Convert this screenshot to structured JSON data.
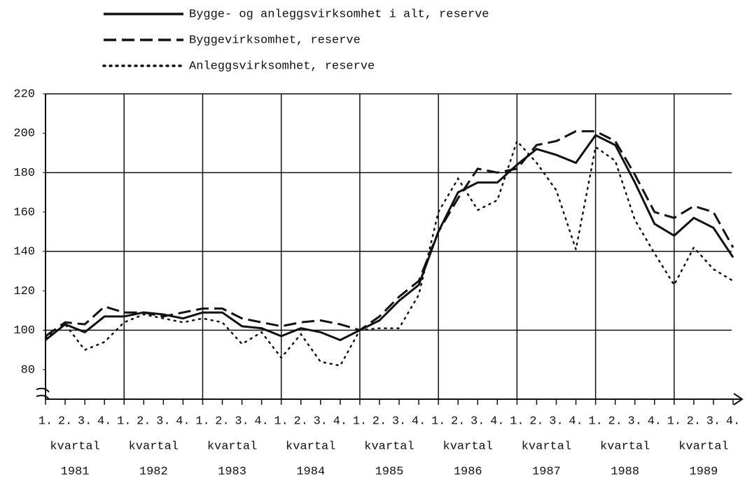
{
  "chart_data": {
    "type": "line",
    "categories": [
      "1.",
      "2.",
      "3.",
      "4.",
      "1.",
      "2.",
      "3.",
      "4.",
      "1.",
      "2.",
      "3.",
      "4.",
      "1.",
      "2.",
      "3.",
      "4.",
      "1.",
      "2.",
      "3.",
      "4.",
      "1.",
      "2.",
      "3.",
      "4.",
      "1.",
      "2.",
      "3.",
      "4.",
      "1.",
      "2.",
      "3.",
      "4.",
      "1.",
      "2.",
      "3.",
      "4."
    ],
    "year_groups": [
      {
        "label": "kvartal",
        "year": "1981"
      },
      {
        "label": "kvartal",
        "year": "1982"
      },
      {
        "label": "kvartal",
        "year": "1983"
      },
      {
        "label": "kvartal",
        "year": "1984"
      },
      {
        "label": "kvartal",
        "year": "1985"
      },
      {
        "label": "kvartal",
        "year": "1986"
      },
      {
        "label": "kvartal",
        "year": "1987"
      },
      {
        "label": "kvartal",
        "year": "1988"
      },
      {
        "label": "kvartal",
        "year": "1989"
      }
    ],
    "series": [
      {
        "name": "Bygge- og anleggsvirksomhet i alt, reserve",
        "color": "#111111",
        "dash": "solid",
        "values": [
          95,
          103,
          99,
          107,
          107,
          109,
          108,
          106,
          109,
          109,
          102,
          101,
          97,
          101,
          99,
          95,
          100,
          105,
          115,
          123,
          150,
          170,
          175,
          175,
          184,
          192,
          189,
          185,
          199,
          194,
          175,
          154,
          148,
          157,
          152,
          137
        ]
      },
      {
        "name": "Byggevirksomhet, reserve",
        "color": "#111111",
        "dash": "dashed",
        "values": [
          97,
          104,
          103,
          112,
          109,
          109,
          107,
          109,
          111,
          111,
          106,
          104,
          102,
          104,
          105,
          103,
          100,
          107,
          117,
          125,
          150,
          167,
          182,
          180,
          182,
          194,
          196,
          201,
          201,
          196,
          179,
          160,
          157,
          163,
          160,
          142
        ]
      },
      {
        "name": "Anleggsvirksomhet, reserve",
        "color": "#111111",
        "dash": "dotted",
        "values": [
          96,
          103,
          90,
          94,
          104,
          108,
          106,
          104,
          106,
          104,
          93,
          99,
          86,
          98,
          84,
          82,
          100,
          101,
          101,
          118,
          160,
          177,
          161,
          166,
          196,
          185,
          171,
          141,
          193,
          186,
          156,
          139,
          123,
          142,
          131,
          125
        ]
      }
    ],
    "ylim": [
      65,
      220
    ],
    "yticks": [
      80,
      100,
      120,
      140,
      160,
      180,
      200,
      220
    ],
    "grid_y": [
      100,
      140,
      180,
      220
    ]
  }
}
